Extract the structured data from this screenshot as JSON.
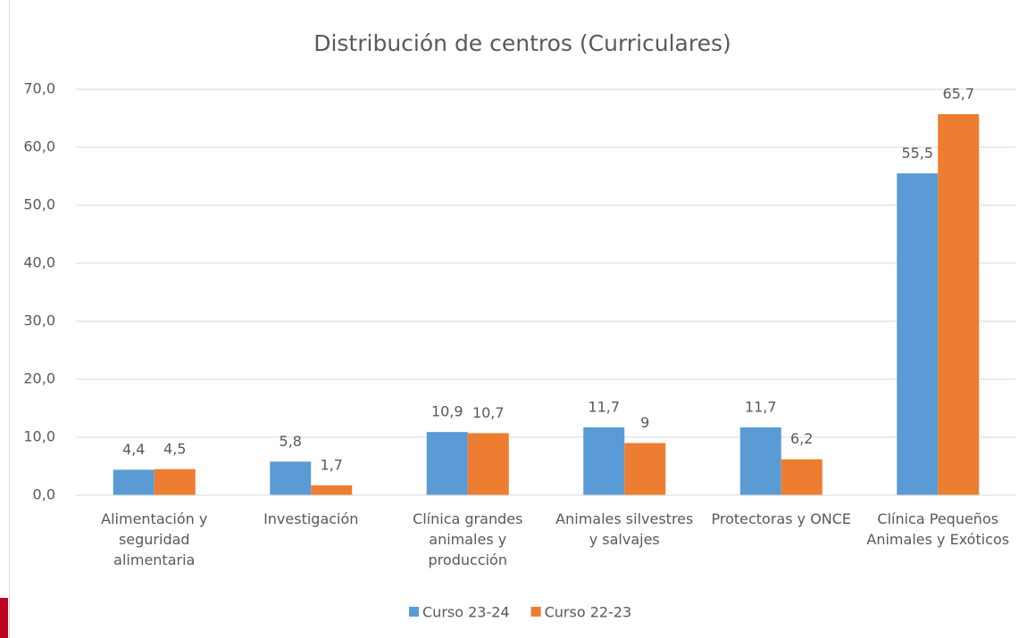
{
  "chart_data": {
    "type": "bar",
    "title": "Distribución de centros (Curriculares)",
    "categories": [
      "Alimentación y seguridad alimentaria",
      "Investigación",
      "Clínica grandes animales y producción",
      "Animales silvestres y salvajes",
      "Protectoras y ONCE",
      "Clínica Pequeños Animales y Exóticos"
    ],
    "series": [
      {
        "name": "Curso 23-24",
        "color": "#5b9bd5",
        "values": [
          4.4,
          5.8,
          10.9,
          11.7,
          11.7,
          55.5
        ],
        "value_labels": [
          "4,4",
          "5,8",
          "10,9",
          "11,7",
          "11,7",
          "55,5"
        ]
      },
      {
        "name": "Curso 22-23",
        "color": "#ed7d31",
        "values": [
          4.5,
          1.7,
          10.7,
          9,
          6.2,
          65.7
        ],
        "value_labels": [
          "4,5",
          "1,7",
          "10,7",
          "9",
          "6,2",
          "65,7"
        ]
      }
    ],
    "ylim": [
      0,
      70
    ],
    "yticks": [
      {
        "value": 0,
        "label": "0,0"
      },
      {
        "value": 10,
        "label": "10,0"
      },
      {
        "value": 20,
        "label": "20,0"
      },
      {
        "value": 30,
        "label": "30,0"
      },
      {
        "value": 40,
        "label": "40,0"
      },
      {
        "value": 50,
        "label": "50,0"
      },
      {
        "value": 60,
        "label": "60,0"
      },
      {
        "value": 70,
        "label": "70,0"
      }
    ],
    "grid": true,
    "legend": "bottom"
  }
}
